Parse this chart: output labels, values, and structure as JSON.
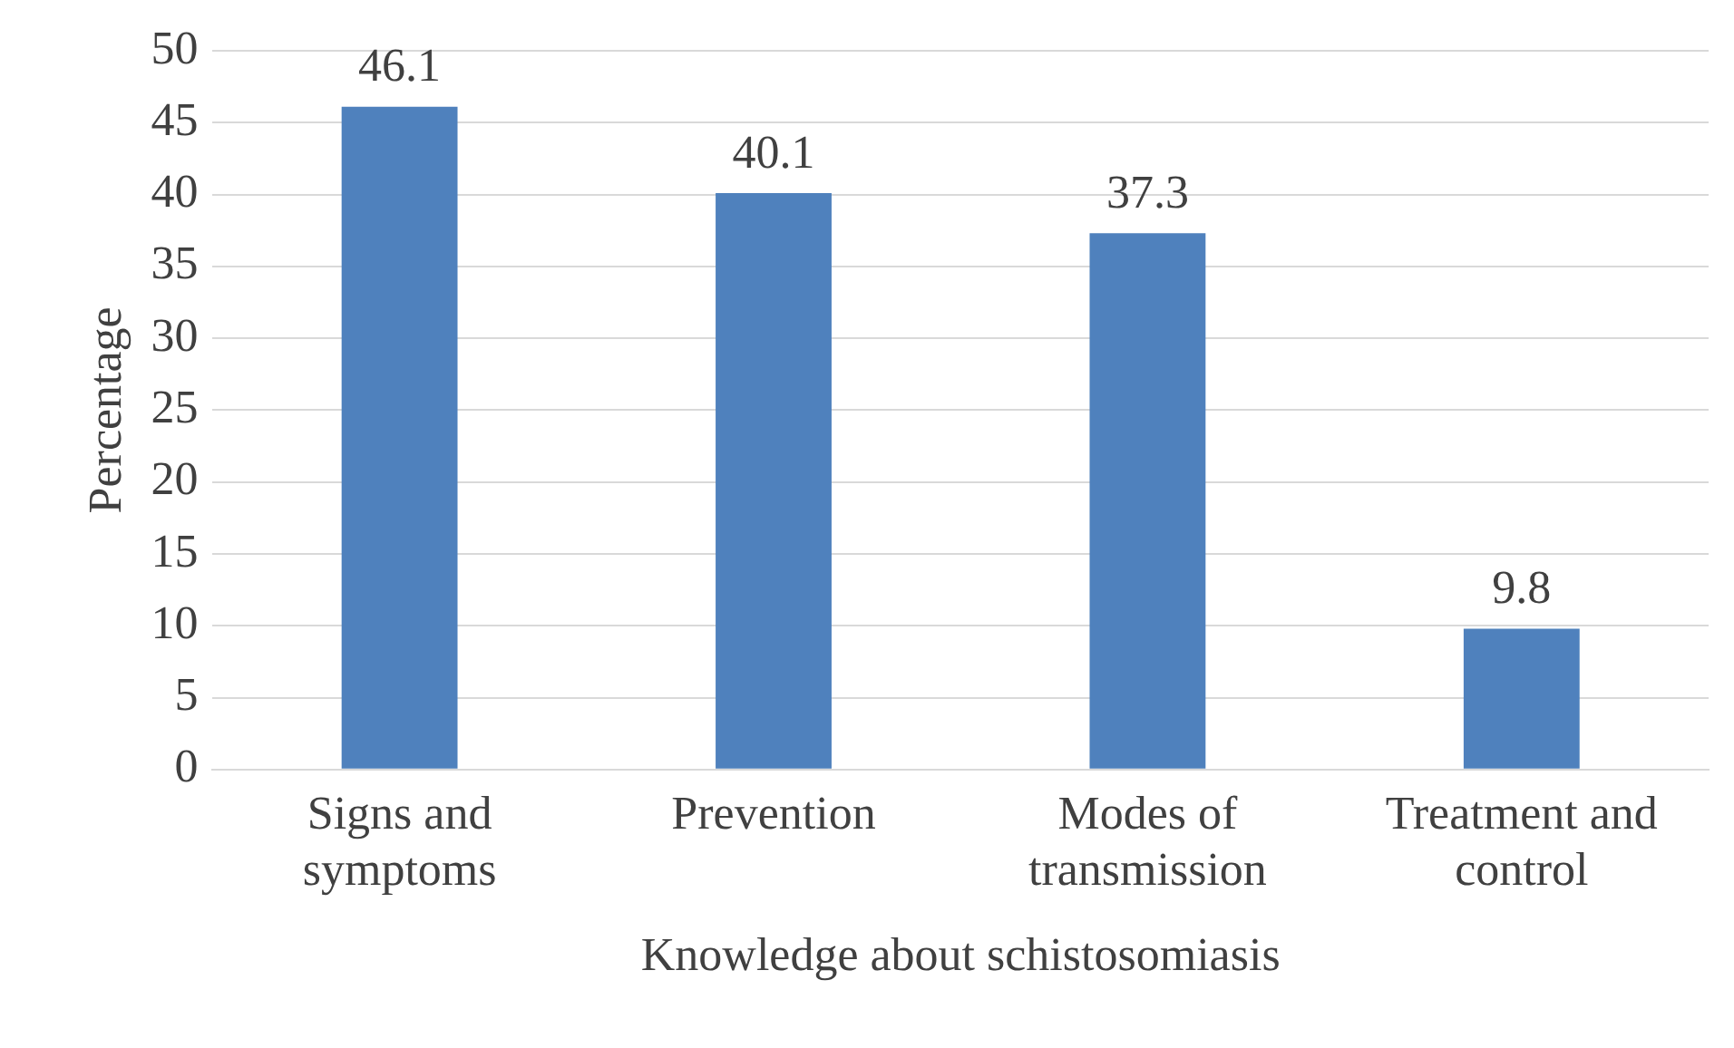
{
  "chart_data": {
    "type": "bar",
    "xlabel": "Knowledge about schistosomiasis",
    "ylabel": "Percentage",
    "categories": [
      "Signs and symptoms",
      "Prevention",
      "Modes of transmission",
      "Treatment and control"
    ],
    "values": [
      46.1,
      40.1,
      37.3,
      9.8
    ],
    "color": "#4f81bd",
    "ylim": [
      0,
      50
    ],
    "yticks": [
      0,
      5,
      10,
      15,
      20,
      25,
      30,
      35,
      40,
      45,
      50
    ],
    "grid": "y",
    "data_labels": true,
    "legend": false
  }
}
